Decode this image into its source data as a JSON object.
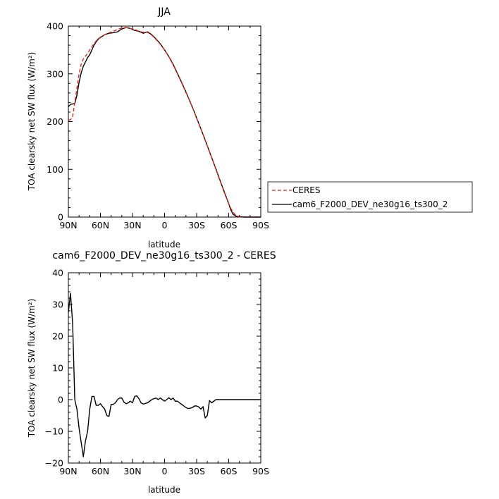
{
  "chart_data": [
    {
      "type": "line",
      "title": "JJA",
      "xlabel": "latitude",
      "ylabel": "TOA clearsky net SW flux (W/m²)",
      "xlim": [
        90,
        -90
      ],
      "ylim": [
        0,
        400
      ],
      "x_tick_values": [
        90,
        60,
        30,
        0,
        -30,
        -60,
        -90
      ],
      "x_tick_labels": [
        "90N",
        "60N",
        "30N",
        "0",
        "30S",
        "60S",
        "90S"
      ],
      "y_tick_values": [
        0,
        100,
        200,
        300,
        400
      ],
      "y_tick_labels": [
        "0",
        "100",
        "200",
        "300",
        "400"
      ],
      "grid": false,
      "legend_position": "right",
      "series": [
        {
          "name": "CERES",
          "color": "#e8241c",
          "dash": "dashed",
          "x": [
            90,
            88,
            86,
            84,
            82,
            80,
            78,
            76,
            74,
            72,
            70,
            68,
            66,
            64,
            62,
            60,
            56,
            52,
            48,
            44,
            40,
            36,
            32,
            28,
            24,
            20,
            16,
            12,
            8,
            4,
            0,
            -4,
            -8,
            -12,
            -16,
            -20,
            -24,
            -28,
            -32,
            -36,
            -40,
            -44,
            -48,
            -52,
            -56,
            -60,
            -62,
            -64,
            -66,
            -68,
            -70,
            -72,
            -75,
            -80,
            -85,
            -90
          ],
          "y": [
            203,
            204,
            210,
            240,
            270,
            300,
            320,
            331,
            337,
            343,
            350,
            357,
            363,
            369,
            373,
            377,
            382,
            386,
            389,
            393,
            396,
            397,
            395,
            393,
            389,
            387,
            387,
            381,
            372,
            362,
            350,
            336,
            319,
            300,
            281,
            261,
            241,
            219,
            196,
            173,
            149,
            125,
            100,
            75,
            51,
            28,
            18,
            11,
            5,
            2,
            1,
            0.5,
            0,
            0,
            0,
            0
          ]
        },
        {
          "name": "cam6_F2000_DEV_ne30g16_ts300_2",
          "color": "#000000",
          "dash": "solid",
          "x": [
            90,
            88,
            86,
            84,
            82,
            80,
            78,
            76,
            74,
            72,
            70,
            68,
            66,
            64,
            62,
            60,
            56,
            52,
            48,
            44,
            40,
            36,
            32,
            28,
            24,
            20,
            16,
            12,
            8,
            4,
            0,
            -4,
            -8,
            -12,
            -16,
            -20,
            -24,
            -28,
            -32,
            -36,
            -40,
            -44,
            -48,
            -52,
            -56,
            -60,
            -62,
            -64,
            -66,
            -68,
            -70,
            -72,
            -75,
            -80,
            -85,
            -90
          ],
          "y": [
            231,
            236,
            237,
            238,
            255,
            282,
            302,
            316,
            325,
            334,
            340,
            350,
            360,
            367,
            373,
            376,
            382,
            385,
            386,
            388,
            394,
            397,
            395,
            391,
            389,
            385,
            388,
            382,
            373,
            363,
            350,
            336,
            320,
            301,
            282,
            262,
            241,
            219,
            196,
            173,
            149,
            125,
            101,
            76,
            52,
            28,
            15,
            6,
            3,
            1,
            0.5,
            0.3,
            0,
            0,
            0,
            0
          ]
        }
      ]
    },
    {
      "type": "line",
      "title": "cam6_F2000_DEV_ne30g16_ts300_2 - CERES",
      "xlabel": "latitude",
      "ylabel": "TOA clearsky net SW flux (W/m²)",
      "xlim": [
        90,
        -90
      ],
      "ylim": [
        -20,
        40
      ],
      "x_tick_values": [
        90,
        60,
        30,
        0,
        -30,
        -60,
        -90
      ],
      "x_tick_labels": [
        "90N",
        "60N",
        "30N",
        "0",
        "30S",
        "60S",
        "90S"
      ],
      "y_tick_values": [
        -20,
        -10,
        0,
        10,
        20,
        30,
        40
      ],
      "y_tick_labels": [
        "−20",
        "−10",
        "0",
        "10",
        "20",
        "30",
        "40"
      ],
      "grid": false,
      "series": [
        {
          "color": "#000000",
          "dash": "solid",
          "x": [
            90,
            88,
            86,
            84,
            82,
            80,
            78,
            76,
            74,
            72,
            70,
            68,
            66,
            64,
            62,
            60,
            58,
            56,
            54,
            52,
            50,
            48,
            46,
            44,
            42,
            40,
            38,
            36,
            34,
            32,
            30,
            28,
            26,
            24,
            22,
            20,
            18,
            16,
            14,
            12,
            10,
            8,
            6,
            4,
            2,
            0,
            -2,
            -4,
            -6,
            -8,
            -10,
            -12,
            -14,
            -16,
            -18,
            -20,
            -22,
            -24,
            -26,
            -28,
            -30,
            -32,
            -34,
            -36,
            -38,
            -40,
            -42,
            -44,
            -46,
            -48,
            -50,
            -52,
            -54,
            -56,
            -58,
            -60,
            -62,
            -64,
            -66,
            -68,
            -70,
            -72,
            -74,
            -76,
            -78,
            -80,
            -82,
            -84,
            -86,
            -88,
            -90
          ],
          "y": [
            27.5,
            33.5,
            24,
            0,
            -3,
            -9,
            -13.5,
            -18,
            -13,
            -10,
            -3,
            1,
            1,
            -1.8,
            -1.8,
            -1.3,
            -2.2,
            -3,
            -5,
            -5.3,
            -1.5,
            -1.5,
            -1,
            0,
            0.5,
            0.5,
            -0.8,
            -1.3,
            -1,
            -0.5,
            -1,
            1,
            1.2,
            0.3,
            -1,
            -1.4,
            -1.2,
            -1,
            -0.5,
            0,
            0.3,
            0.5,
            0,
            0.5,
            0,
            -0.5,
            0,
            0.6,
            0,
            0.5,
            -0.5,
            -0.5,
            -1,
            -1.5,
            -2,
            -2.5,
            -2.8,
            -2.7,
            -2.5,
            -2,
            -2,
            -2.3,
            -3,
            -2.2,
            -5.8,
            -5,
            -0.3,
            -1,
            -0.5,
            0,
            0,
            0,
            0,
            0,
            0,
            0,
            0,
            0,
            0,
            0,
            0,
            0,
            0,
            0,
            0,
            0,
            0,
            0,
            0,
            0,
            0
          ]
        }
      ]
    }
  ]
}
